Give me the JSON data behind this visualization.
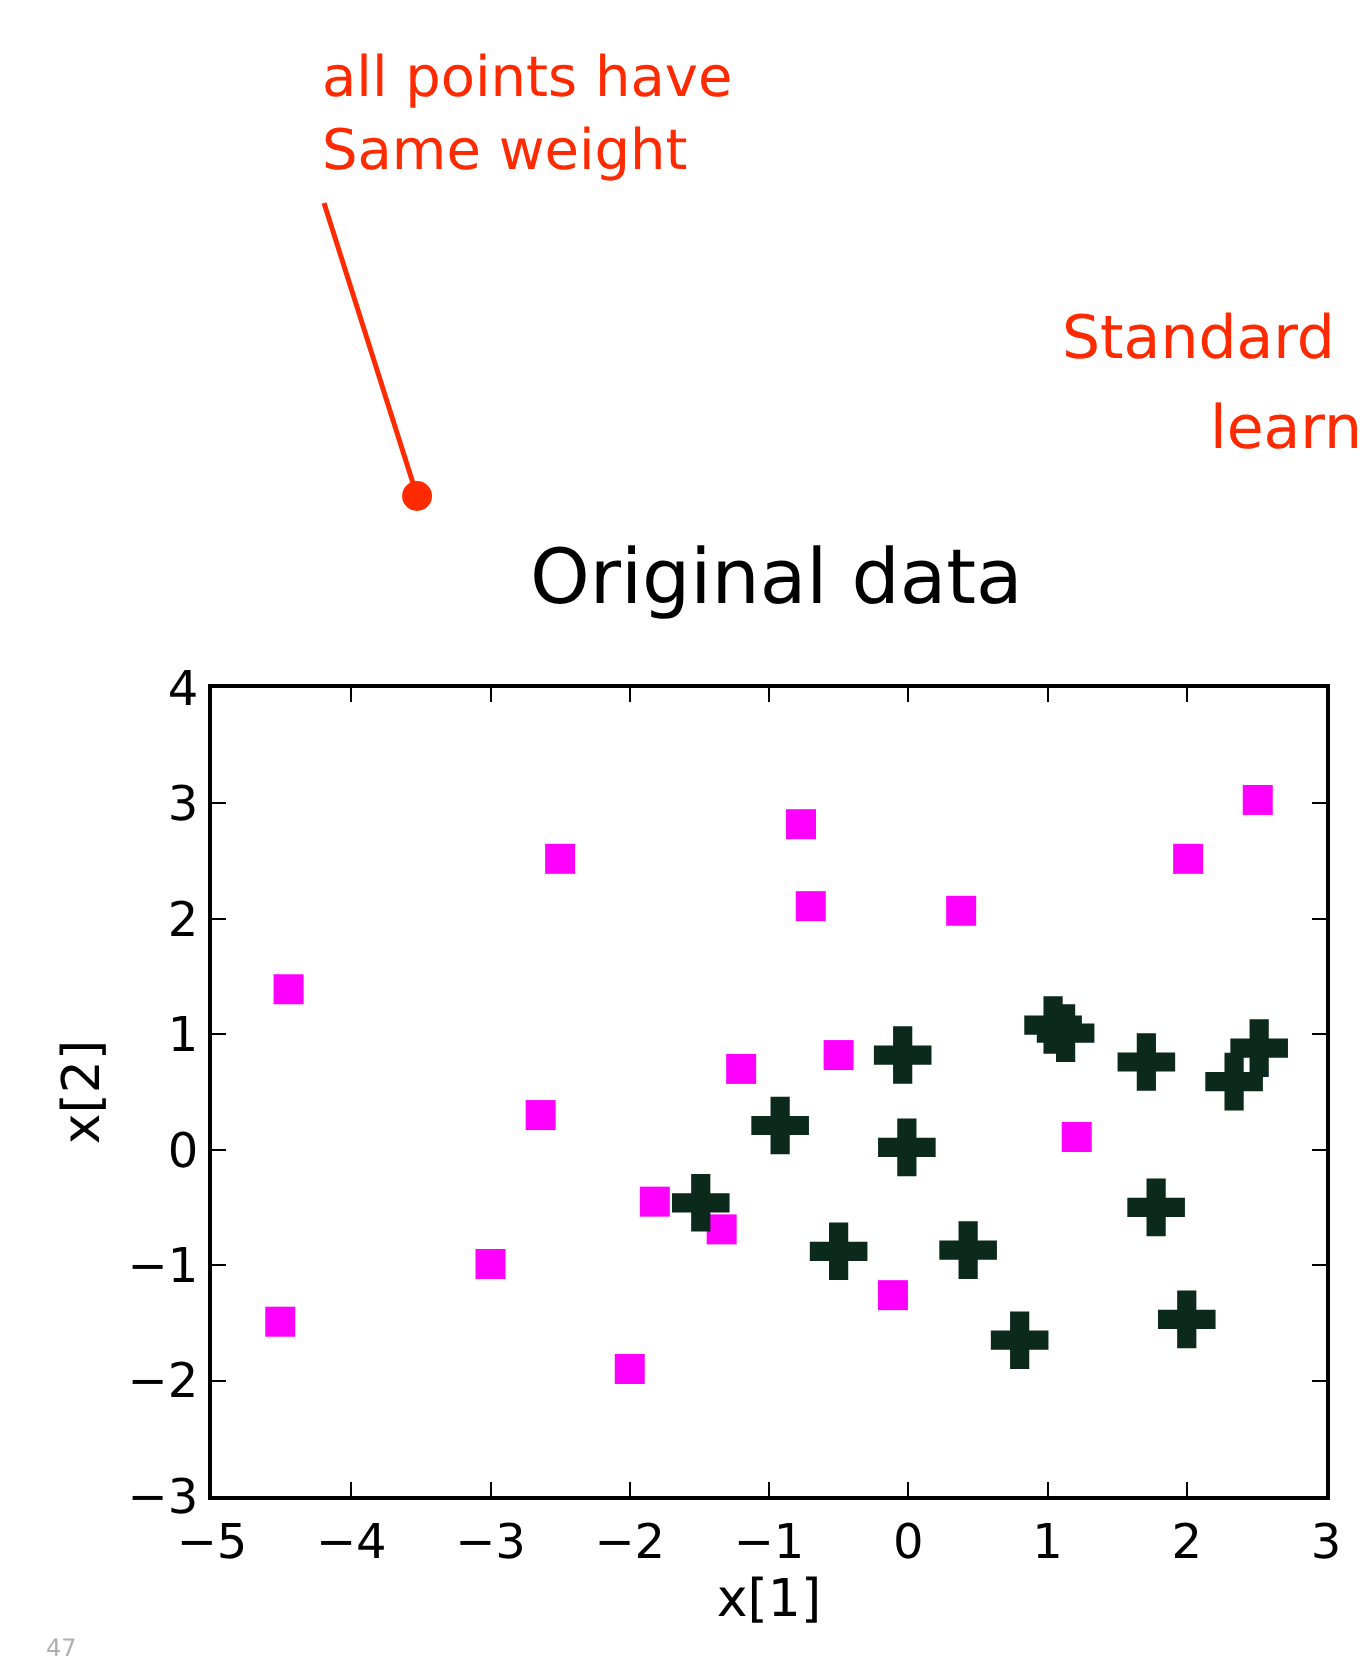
{
  "chart_data": {
    "type": "scatter",
    "title": "Original data",
    "xlabel": "x[1]",
    "ylabel": "x[2]",
    "xlim": [
      -5,
      3
    ],
    "xticks": [
      -5,
      -4,
      -3,
      -2,
      -1,
      0,
      1,
      2,
      3
    ],
    "ylim": [
      -3,
      4
    ],
    "yticks": [
      -3,
      -2,
      -1,
      0,
      1,
      2,
      3,
      4
    ],
    "annotations": [
      "all points have\nSame weight",
      "Standard",
      "learn",
      "47"
    ],
    "series": [
      {
        "color": "#ff00ff",
        "marker": "square",
        "x": [
          -4.45,
          -2.5,
          -0.77,
          -0.7,
          -2.64,
          -1.2,
          -1.82,
          -1.34,
          -3.0,
          -4.51,
          -2.0,
          -0.5,
          0.38,
          -0.11,
          1.21,
          2.01,
          2.51
        ],
        "values": [
          1.39,
          2.52,
          2.82,
          2.11,
          0.3,
          0.7,
          -0.45,
          -0.69,
          -0.99,
          -1.49,
          -1.9,
          0.82,
          2.07,
          -1.26,
          0.11,
          2.52,
          3.03
        ]
      },
      {
        "color": "#0b2a1c",
        "marker": "cross",
        "x": [
          -1.49,
          -0.92,
          -0.04,
          -0.01,
          -0.5,
          0.43,
          0.8,
          1.04,
          1.13,
          1.71,
          1.78,
          2.0,
          2.34,
          2.52
        ],
        "values": [
          -0.46,
          0.21,
          0.82,
          0.02,
          -0.88,
          -0.87,
          -1.65,
          1.08,
          1.01,
          0.76,
          -0.5,
          -1.47,
          0.59,
          0.88
        ]
      }
    ]
  }
}
